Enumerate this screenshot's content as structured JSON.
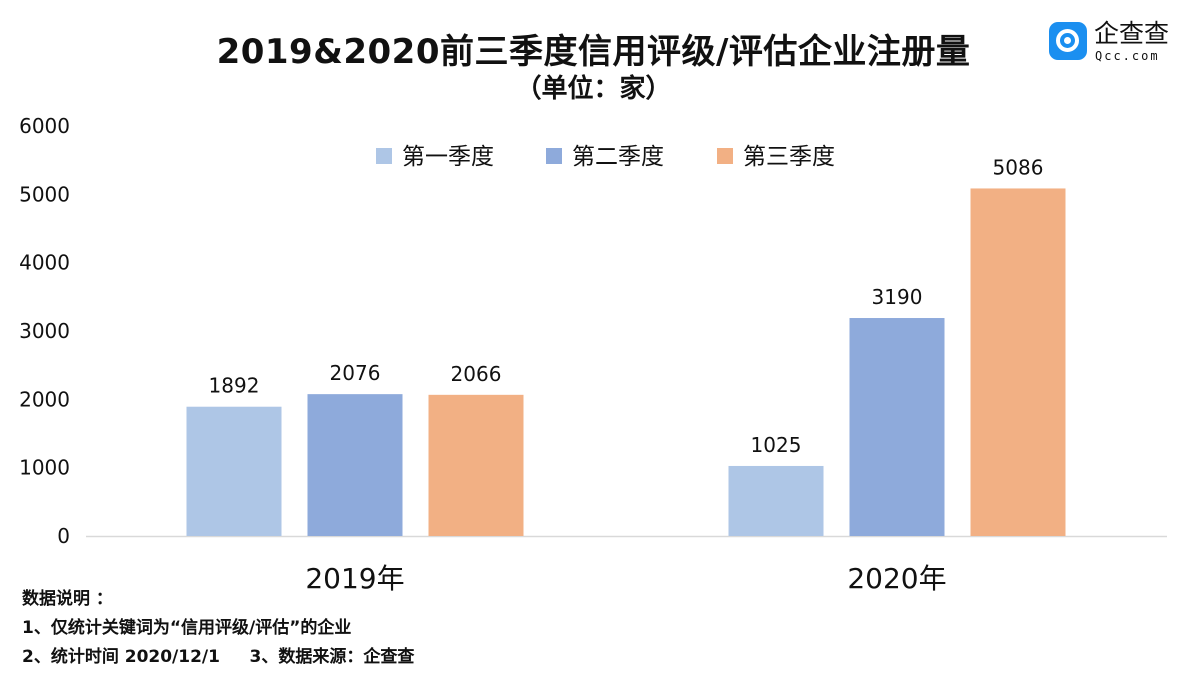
{
  "title": "2019&2020前三季度信用评级/评估企业注册量",
  "subtitle": "（单位：家）",
  "logo": {
    "name": "企查查",
    "sub": "Qcc.com"
  },
  "chart_data": {
    "type": "bar",
    "categories": [
      "2019年",
      "2020年"
    ],
    "series": [
      {
        "name": "第一季度",
        "values": [
          1892,
          1025
        ],
        "color": "#aec6e6"
      },
      {
        "name": "第二季度",
        "values": [
          2076,
          3190
        ],
        "color": "#8eaadb"
      },
      {
        "name": "第三季度",
        "values": [
          2066,
          5086
        ],
        "color": "#f2b084"
      }
    ],
    "ylim": [
      0,
      6000
    ],
    "yticks": [
      "0",
      "1000",
      "2000",
      "3000",
      "4000",
      "5000",
      "6000"
    ],
    "grid": false,
    "legend": "top-center",
    "data_labels": true
  },
  "notes": {
    "heading": "数据说明 ：",
    "line1": "1、仅统计关键词为“信用评级/评估”的企业",
    "line2": "2、统计时间 2020/12/1     3、数据来源：企查查"
  }
}
